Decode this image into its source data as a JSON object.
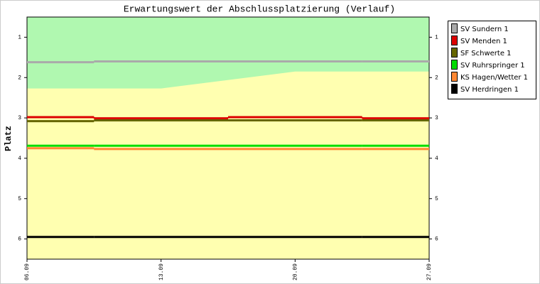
{
  "chart_data": {
    "type": "line",
    "title": "Erwartungswert der Abschlussplatzierung (Verlauf)",
    "y_label": "Platz",
    "step": "post",
    "inverted_y": true,
    "xlim": [
      0,
      21
    ],
    "xticks": [
      {
        "value": 0,
        "label": "06.09"
      },
      {
        "value": 7,
        "label": "13.09"
      },
      {
        "value": 14,
        "label": "20.09"
      },
      {
        "value": 21,
        "label": "27.09"
      }
    ],
    "ylim": [
      0.5,
      6.5
    ],
    "yticks": [
      1,
      2,
      3,
      4,
      5,
      6
    ],
    "zone_boundary": {
      "x": [
        0,
        7,
        14,
        21
      ],
      "values": [
        2.27,
        2.27,
        1.85,
        1.85
      ],
      "upper_color": "#b0f8b0",
      "lower_color": "#ffffb0"
    },
    "x": [
      0,
      3.5,
      10.5,
      17.5
    ],
    "series": [
      {
        "name": "SV Sundern 1",
        "color": "#aaaaaa",
        "values": [
          1.62,
          1.6,
          1.6,
          1.6
        ]
      },
      {
        "name": "SV Menden 1",
        "color": "#dd0000",
        "values": [
          2.98,
          3.01,
          2.98,
          3.01
        ]
      },
      {
        "name": "SF Schwerte 1",
        "color": "#666600",
        "values": [
          3.08,
          3.06,
          3.06,
          3.06
        ]
      },
      {
        "name": "SV Ruhrspringer 1",
        "color": "#00dd00",
        "values": [
          3.69,
          3.69,
          3.69,
          3.69
        ]
      },
      {
        "name": "KS Hagen/Wetter 1",
        "color": "#ff8833",
        "values": [
          3.75,
          3.77,
          3.77,
          3.77
        ]
      },
      {
        "name": "SV Herdringen 1",
        "color": "#000000",
        "values": [
          5.95,
          5.95,
          5.95,
          5.95
        ]
      }
    ]
  }
}
